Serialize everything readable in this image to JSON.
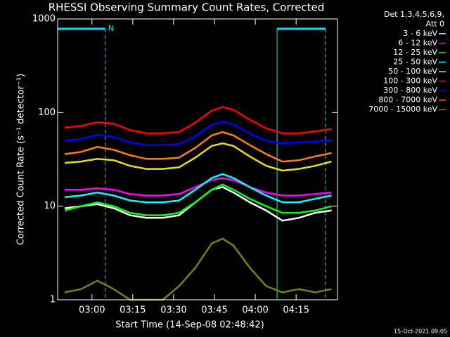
{
  "chart_data": {
    "type": "line",
    "title": "RHESSI Observing Summary Count Rates, Corrected",
    "xlabel": "Start Time (14-Sep-08 02:48:42)",
    "ylabel": "Corrected Count Rate (s⁻¹ detector⁻¹)",
    "legend_header": [
      "Det 1,3,4,5,6,9,",
      "Att 0"
    ],
    "footer": "15-Oct-2021 09:05",
    "log_y": true,
    "xlim": [
      167.4,
      270.2
    ],
    "ylim": [
      1,
      1000
    ],
    "xticks": [
      {
        "value": 180,
        "label": "03:00"
      },
      {
        "value": 195,
        "label": "03:15"
      },
      {
        "value": 210,
        "label": "03:30"
      },
      {
        "value": 225,
        "label": "03:45"
      },
      {
        "value": 240,
        "label": "04:00"
      },
      {
        "value": 255,
        "label": "04:15"
      }
    ],
    "yticks": [
      1,
      10,
      100,
      1000
    ],
    "night_label": "N",
    "night_intervals": [
      [
        167.4,
        184.9
      ],
      [
        248,
        265.8
      ]
    ],
    "night_color": "#00e5e5",
    "x": [
      170,
      176,
      182,
      188,
      194,
      200,
      206,
      212,
      218,
      224,
      228,
      232,
      238,
      244,
      250,
      256,
      262,
      268
    ],
    "series": [
      {
        "name": "3 - 6 keV",
        "color": "#ffffff",
        "values": [
          9.5,
          10,
          10.5,
          9.5,
          8,
          7.5,
          7.5,
          8,
          11,
          15,
          16,
          14,
          11,
          9,
          7,
          7.5,
          8.5,
          9
        ]
      },
      {
        "name": "6 - 12 keV",
        "color": "#ff00ff",
        "values": [
          15,
          15,
          15.5,
          15,
          13.5,
          13,
          13,
          13.5,
          16,
          19,
          20,
          19,
          16,
          14,
          13,
          13,
          13.5,
          14
        ]
      },
      {
        "name": "12 - 25 keV",
        "color": "#00ff00",
        "values": [
          9,
          10,
          11,
          10,
          8.5,
          8,
          8,
          8.5,
          11,
          15,
          17,
          15,
          12,
          10,
          8.5,
          8.5,
          9,
          10
        ]
      },
      {
        "name": "25 - 50 keV",
        "color": "#00ffff",
        "values": [
          12.5,
          13,
          14,
          13,
          11.5,
          11,
          11,
          11.5,
          15,
          20,
          22,
          20,
          16,
          13,
          11,
          11,
          12,
          13
        ]
      },
      {
        "name": "50 - 100 keV",
        "color": "#e5e500",
        "values": [
          29,
          30,
          32,
          31,
          27,
          25,
          25,
          26,
          33,
          44,
          47,
          44,
          34,
          27,
          24,
          25,
          27,
          30
        ]
      },
      {
        "name": "100 - 300 keV",
        "color": "#ff0000",
        "values": [
          69,
          72,
          79,
          76,
          65,
          60,
          60,
          62,
          78,
          105,
          115,
          107,
          84,
          68,
          60,
          60,
          63,
          67
        ]
      },
      {
        "name": "300 - 800 keV",
        "color": "#0000ff",
        "values": [
          50,
          52,
          58,
          55,
          48,
          45,
          45,
          46,
          56,
          74,
          80,
          75,
          60,
          50,
          47,
          48,
          49,
          51
        ]
      },
      {
        "name": "800 - 7000 keV",
        "color": "#ff8000",
        "values": [
          36,
          38,
          43,
          40,
          35,
          32,
          32,
          33,
          42,
          57,
          62,
          57,
          45,
          36,
          30,
          31,
          34,
          37
        ]
      },
      {
        "name": "7000 - 15000 keV",
        "color": "#808000",
        "values": [
          1.2,
          1.3,
          1.6,
          1.3,
          1,
          1,
          1,
          1.4,
          2.2,
          4,
          4.5,
          3.8,
          2.2,
          1.4,
          1.2,
          1.3,
          1.2,
          1.3
        ]
      }
    ]
  }
}
